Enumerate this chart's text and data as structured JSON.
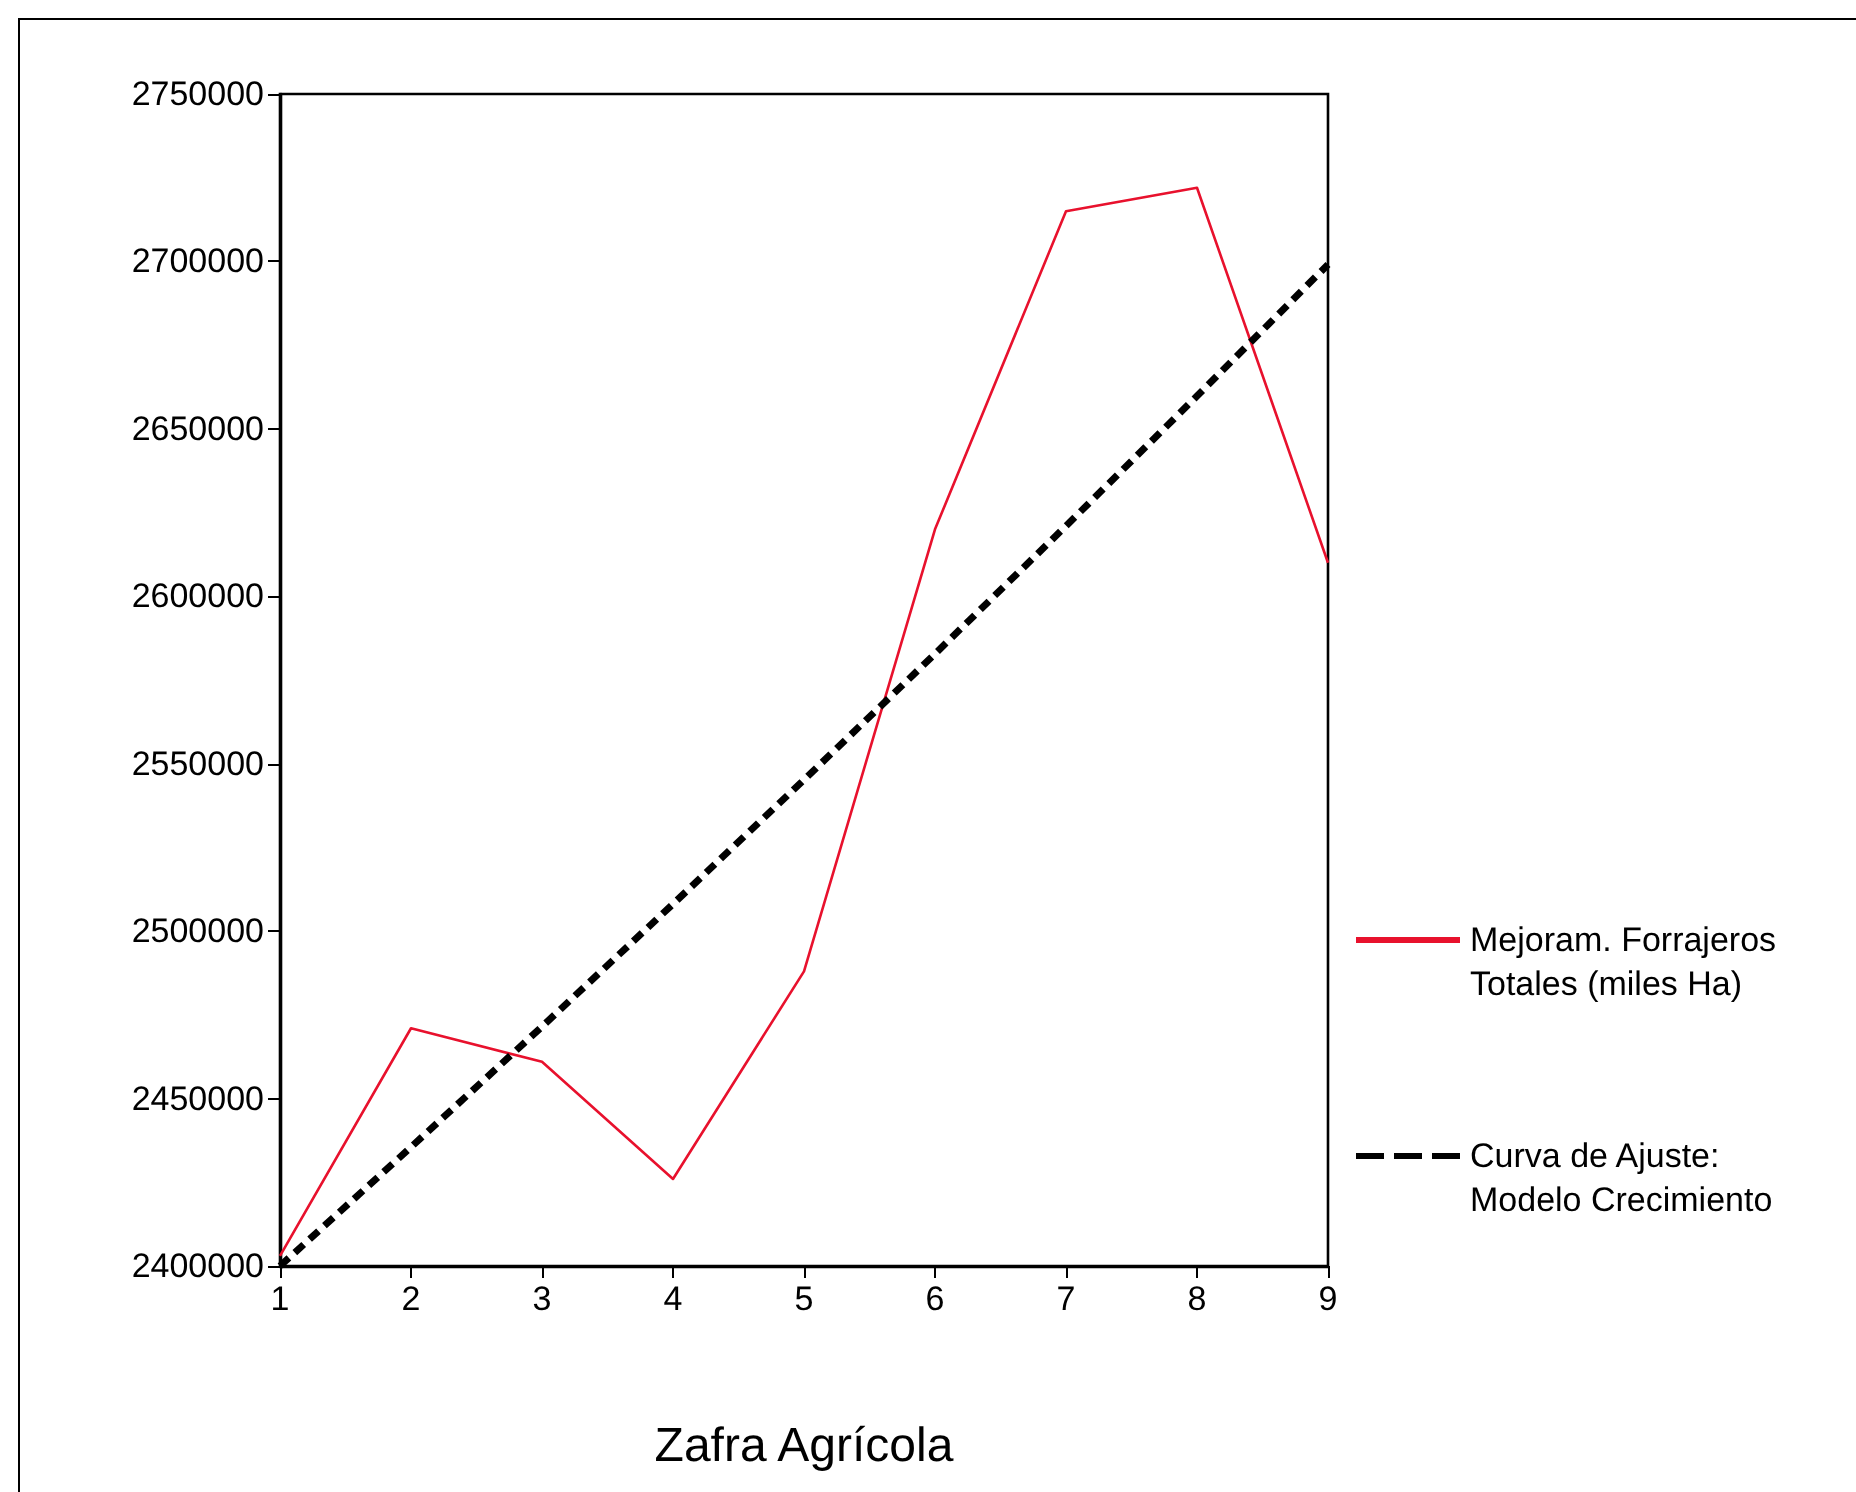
{
  "chart_data": {
    "type": "line",
    "xlabel": "Zafra Agrícola",
    "x": [
      1,
      2,
      3,
      4,
      5,
      6,
      7,
      8,
      9
    ],
    "series": [
      {
        "name": "Mejoram. Forrajeros Totales (miles Ha)",
        "color": "#e8112d",
        "values": [
          2403000,
          2471000,
          2461000,
          2426000,
          2488000,
          2620000,
          2715000,
          2722000,
          2610000
        ]
      },
      {
        "name": "Curva de Ajuste: Modelo Crecimiento",
        "color": "#000000",
        "line_style": "dashed",
        "values": [
          2400000,
          2435500,
          2471500,
          2508100,
          2545200,
          2582800,
          2621000,
          2659800,
          2699100
        ]
      }
    ],
    "xlim": [
      1,
      9
    ],
    "xticks": [
      1,
      2,
      3,
      4,
      5,
      6,
      7,
      8,
      9
    ],
    "ylim": [
      2400000,
      2750000
    ],
    "yticks": [
      2400000,
      2450000,
      2500000,
      2550000,
      2600000,
      2650000,
      2700000,
      2750000
    ],
    "grid": false,
    "legend": "right",
    "marker": "none",
    "line_style": "solid"
  }
}
